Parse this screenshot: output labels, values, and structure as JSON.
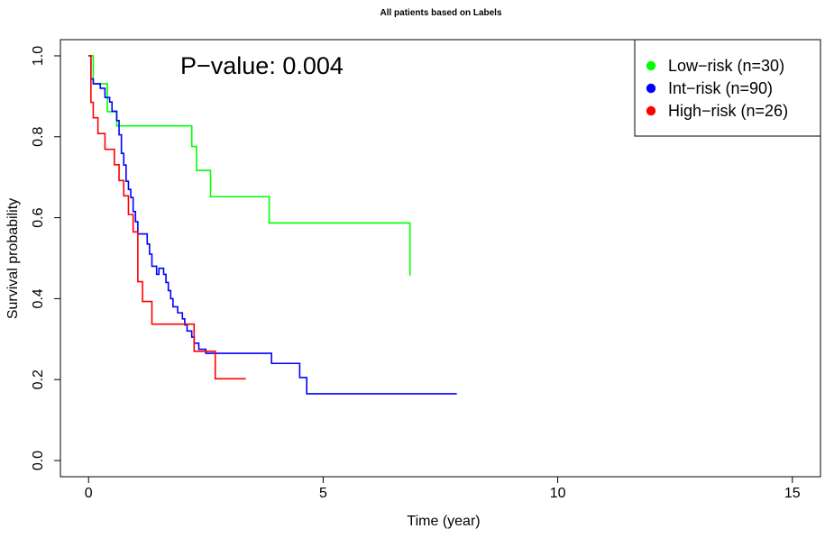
{
  "chart_data": {
    "type": "line",
    "step": true,
    "title": "All patients based on Labels",
    "xlabel": "Time (year)",
    "ylabel": "Survival probability",
    "xlim": [
      -0.6,
      15.6
    ],
    "ylim": [
      -0.04,
      1.04
    ],
    "xticks": [
      0,
      5,
      10,
      15
    ],
    "yticks": [
      0.0,
      0.2,
      0.4,
      0.6,
      0.8,
      1.0
    ],
    "xtick_labels": [
      "0",
      "5",
      "10",
      "15"
    ],
    "ytick_labels": [
      "0.0",
      "0.2",
      "0.4",
      "0.6",
      "0.8",
      "1.0"
    ],
    "grid": false,
    "annotation": "P−value: 0.004",
    "legend": {
      "placement": "top-right",
      "entries": [
        "Low−risk (n=30)",
        "Int−risk (n=90)",
        "High−risk (n=26)"
      ]
    },
    "series": [
      {
        "name": "Low−risk (n=30)",
        "color": "#00ff00",
        "x": [
          0,
          0.05,
          0.1,
          0.4,
          0.6,
          1.6,
          2.2,
          2.3,
          2.6,
          3.85,
          6.85
        ],
        "y": [
          1.0,
          1.0,
          0.931,
          0.862,
          0.827,
          0.827,
          0.776,
          0.717,
          0.652,
          0.587,
          0.457
        ]
      },
      {
        "name": "Int−risk (n=90)",
        "color": "#0000ff",
        "x": [
          0,
          0.05,
          0.1,
          0.25,
          0.35,
          0.45,
          0.5,
          0.6,
          0.65,
          0.7,
          0.75,
          0.8,
          0.85,
          0.9,
          0.95,
          1.0,
          1.05,
          1.15,
          1.25,
          1.3,
          1.35,
          1.45,
          1.5,
          1.6,
          1.65,
          1.7,
          1.75,
          1.8,
          1.85,
          1.9,
          2.0,
          2.05,
          2.1,
          2.2,
          2.25,
          2.35,
          2.5,
          2.7,
          3.9,
          4.5,
          4.65,
          7.85
        ],
        "y": [
          1.0,
          0.943,
          0.931,
          0.92,
          0.897,
          0.886,
          0.863,
          0.84,
          0.805,
          0.759,
          0.73,
          0.69,
          0.67,
          0.65,
          0.615,
          0.59,
          0.56,
          0.56,
          0.535,
          0.51,
          0.48,
          0.46,
          0.475,
          0.46,
          0.44,
          0.42,
          0.4,
          0.38,
          0.38,
          0.365,
          0.35,
          0.335,
          0.32,
          0.305,
          0.29,
          0.275,
          0.265,
          0.265,
          0.24,
          0.205,
          0.165,
          0.165
        ]
      },
      {
        "name": "High−risk (n=26)",
        "color": "#ff0000",
        "x": [
          0,
          0.05,
          0.1,
          0.2,
          0.35,
          0.55,
          0.65,
          0.75,
          0.85,
          0.95,
          1.05,
          1.15,
          1.35,
          2.25,
          2.35,
          2.7,
          3.35
        ],
        "y": [
          1.0,
          0.885,
          0.847,
          0.808,
          0.769,
          0.731,
          0.692,
          0.654,
          0.608,
          0.565,
          0.442,
          0.393,
          0.337,
          0.27,
          0.27,
          0.202,
          0.202
        ]
      }
    ]
  }
}
